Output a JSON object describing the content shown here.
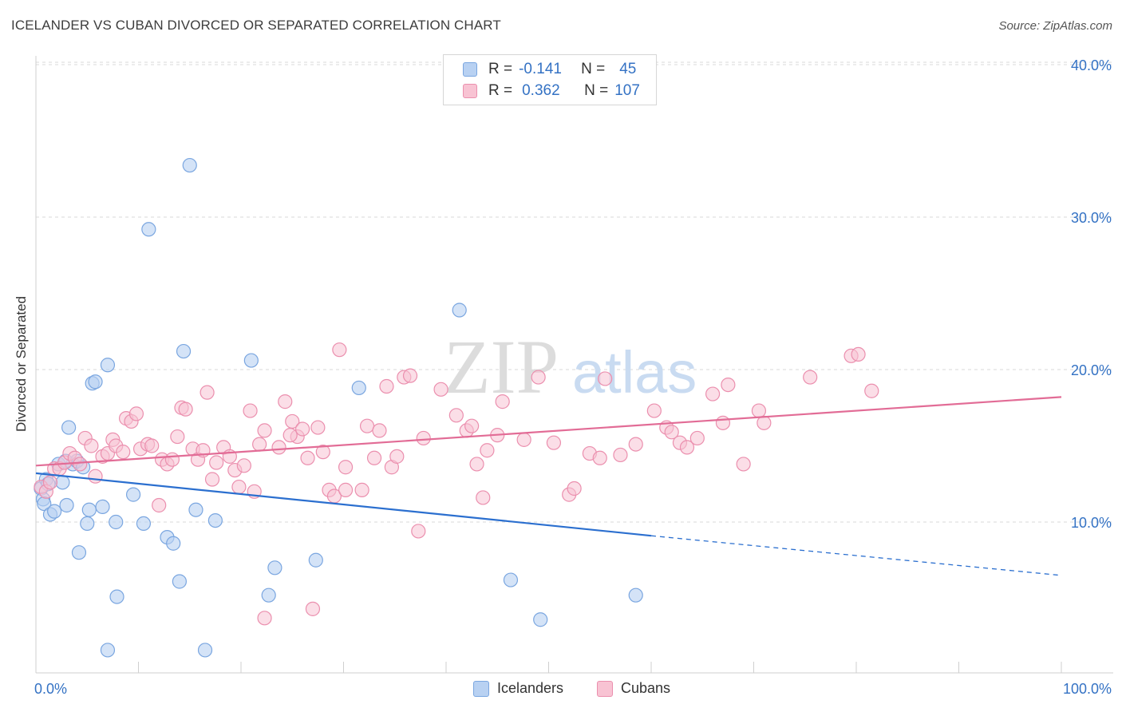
{
  "title": "ICELANDER VS CUBAN DIVORCED OR SEPARATED CORRELATION CHART",
  "source": "Source: ZipAtlas.com",
  "watermark": {
    "zip": "ZIP",
    "atlas": "atlas"
  },
  "legend": {
    "rows": [
      {
        "r_label": "R =",
        "r_value": "-0.141",
        "n_label": "N =",
        "n_value": "45"
      },
      {
        "r_label": "R =",
        "r_value": "0.362",
        "n_label": "N =",
        "n_value": "107"
      }
    ]
  },
  "bottom_legend": {
    "icelanders": "Icelanders",
    "cubans": "Cubans"
  },
  "colors": {
    "icelanders_fill": "#b8d1f2",
    "icelanders_stroke": "#7aa6e0",
    "icelanders_line": "#2b6fcf",
    "cubans_fill": "#f8c3d3",
    "cubans_stroke": "#eb8fae",
    "cubans_line": "#e26c96",
    "axis_label": "#3472c4",
    "grid": "#d9d9d9"
  },
  "chart_data": {
    "type": "scatter",
    "title": "ICELANDER VS CUBAN DIVORCED OR SEPARATED CORRELATION CHART",
    "xlabel": "",
    "ylabel": "Divorced or Separated",
    "xlim": [
      0,
      100
    ],
    "ylim": [
      0,
      41
    ],
    "x_tick_labels": [
      "0.0%",
      "100.0%"
    ],
    "y_ticks": [
      10,
      20,
      30,
      40
    ],
    "y_tick_labels": [
      "10.0%",
      "20.0%",
      "30.0%",
      "40.0%"
    ],
    "grid": true,
    "legend_position": "top-center",
    "series": [
      {
        "name": "Icelanders",
        "r": -0.141,
        "n": 45,
        "trend": {
          "x0": 0,
          "y0": 13.2,
          "x1": 60,
          "y1": 9.1,
          "dashed_to_x": 100,
          "dashed_to_y": 6.5
        },
        "points": [
          [
            0.5,
            12.2
          ],
          [
            0.7,
            11.5
          ],
          [
            0.8,
            11.2
          ],
          [
            1.0,
            12.8
          ],
          [
            1.2,
            12.5
          ],
          [
            1.4,
            10.5
          ],
          [
            1.8,
            10.7
          ],
          [
            2.2,
            13.8
          ],
          [
            2.6,
            12.6
          ],
          [
            3.0,
            11.1
          ],
          [
            3.2,
            16.2
          ],
          [
            3.6,
            13.8
          ],
          [
            4.0,
            14.0
          ],
          [
            4.2,
            8.0
          ],
          [
            4.6,
            13.6
          ],
          [
            5.0,
            9.9
          ],
          [
            5.2,
            10.8
          ],
          [
            5.5,
            19.1
          ],
          [
            5.8,
            19.2
          ],
          [
            6.5,
            11.0
          ],
          [
            7.0,
            20.3
          ],
          [
            7.0,
            1.6
          ],
          [
            7.8,
            10.0
          ],
          [
            7.9,
            5.1
          ],
          [
            9.5,
            11.8
          ],
          [
            10.5,
            9.9
          ],
          [
            11.0,
            29.2
          ],
          [
            12.8,
            9.0
          ],
          [
            13.4,
            8.6
          ],
          [
            14.0,
            6.1
          ],
          [
            14.4,
            21.2
          ],
          [
            15.0,
            33.4
          ],
          [
            15.6,
            10.8
          ],
          [
            16.5,
            1.6
          ],
          [
            17.5,
            10.1
          ],
          [
            21.0,
            20.6
          ],
          [
            22.7,
            5.2
          ],
          [
            23.3,
            7.0
          ],
          [
            27.3,
            7.5
          ],
          [
            31.5,
            18.8
          ],
          [
            41.3,
            23.9
          ],
          [
            46.3,
            6.2
          ],
          [
            49.2,
            3.6
          ],
          [
            58.5,
            5.2
          ],
          [
            2.9,
            14.0
          ]
        ]
      },
      {
        "name": "Cubans",
        "r": 0.362,
        "n": 107,
        "trend": {
          "x0": 0,
          "y0": 13.7,
          "x1": 100,
          "y1": 18.2
        },
        "points": [
          [
            0.5,
            12.3
          ],
          [
            1.0,
            12.0
          ],
          [
            1.4,
            12.6
          ],
          [
            1.8,
            13.5
          ],
          [
            2.3,
            13.5
          ],
          [
            2.8,
            13.9
          ],
          [
            3.3,
            14.5
          ],
          [
            3.8,
            14.2
          ],
          [
            4.3,
            13.8
          ],
          [
            4.8,
            15.5
          ],
          [
            5.4,
            15.0
          ],
          [
            5.8,
            13.0
          ],
          [
            6.5,
            14.3
          ],
          [
            7.0,
            14.5
          ],
          [
            7.5,
            15.4
          ],
          [
            7.8,
            15.0
          ],
          [
            8.5,
            14.6
          ],
          [
            8.8,
            16.8
          ],
          [
            9.3,
            16.6
          ],
          [
            9.8,
            17.1
          ],
          [
            10.2,
            14.8
          ],
          [
            10.9,
            15.1
          ],
          [
            11.3,
            15.0
          ],
          [
            12.0,
            11.1
          ],
          [
            12.3,
            14.1
          ],
          [
            12.8,
            13.8
          ],
          [
            13.3,
            14.1
          ],
          [
            13.8,
            15.6
          ],
          [
            14.2,
            17.5
          ],
          [
            14.6,
            17.4
          ],
          [
            15.3,
            14.8
          ],
          [
            15.8,
            14.1
          ],
          [
            16.3,
            14.7
          ],
          [
            16.7,
            18.5
          ],
          [
            17.2,
            12.8
          ],
          [
            17.6,
            13.9
          ],
          [
            18.3,
            14.9
          ],
          [
            18.9,
            14.3
          ],
          [
            19.4,
            13.4
          ],
          [
            19.8,
            12.3
          ],
          [
            20.3,
            13.7
          ],
          [
            20.9,
            17.3
          ],
          [
            21.3,
            12.0
          ],
          [
            21.8,
            15.1
          ],
          [
            22.3,
            16.0
          ],
          [
            23.7,
            14.9
          ],
          [
            24.3,
            17.9
          ],
          [
            25.0,
            16.6
          ],
          [
            25.5,
            15.6
          ],
          [
            26.0,
            16.1
          ],
          [
            26.5,
            14.2
          ],
          [
            27.0,
            4.3
          ],
          [
            27.5,
            16.2
          ],
          [
            28.0,
            14.6
          ],
          [
            28.6,
            12.1
          ],
          [
            29.1,
            11.7
          ],
          [
            29.6,
            21.3
          ],
          [
            30.2,
            13.6
          ],
          [
            31.8,
            12.1
          ],
          [
            32.3,
            16.3
          ],
          [
            33.0,
            14.2
          ],
          [
            33.5,
            16.0
          ],
          [
            34.2,
            18.9
          ],
          [
            34.7,
            13.6
          ],
          [
            35.2,
            14.3
          ],
          [
            35.9,
            19.5
          ],
          [
            36.5,
            19.6
          ],
          [
            37.3,
            9.4
          ],
          [
            37.8,
            15.5
          ],
          [
            39.5,
            18.7
          ],
          [
            41.0,
            17.0
          ],
          [
            42.0,
            16.0
          ],
          [
            42.5,
            16.3
          ],
          [
            43.0,
            13.8
          ],
          [
            43.6,
            11.6
          ],
          [
            44.0,
            14.7
          ],
          [
            45.0,
            15.7
          ],
          [
            45.5,
            17.9
          ],
          [
            47.6,
            15.4
          ],
          [
            49.0,
            19.5
          ],
          [
            50.5,
            15.2
          ],
          [
            52.0,
            11.8
          ],
          [
            52.5,
            12.2
          ],
          [
            54.0,
            14.5
          ],
          [
            55.0,
            14.2
          ],
          [
            55.5,
            19.4
          ],
          [
            57.0,
            14.4
          ],
          [
            58.5,
            15.1
          ],
          [
            60.3,
            17.3
          ],
          [
            61.5,
            16.2
          ],
          [
            62.0,
            15.9
          ],
          [
            62.8,
            15.2
          ],
          [
            63.5,
            14.9
          ],
          [
            64.5,
            15.5
          ],
          [
            66.0,
            18.4
          ],
          [
            67.0,
            16.5
          ],
          [
            67.5,
            19.0
          ],
          [
            69.0,
            13.8
          ],
          [
            70.5,
            17.3
          ],
          [
            71.0,
            16.5
          ],
          [
            75.5,
            19.5
          ],
          [
            79.5,
            20.9
          ],
          [
            80.2,
            21.0
          ],
          [
            81.5,
            18.6
          ],
          [
            22.3,
            3.7
          ],
          [
            30.2,
            12.1
          ],
          [
            24.8,
            15.7
          ]
        ]
      }
    ]
  }
}
